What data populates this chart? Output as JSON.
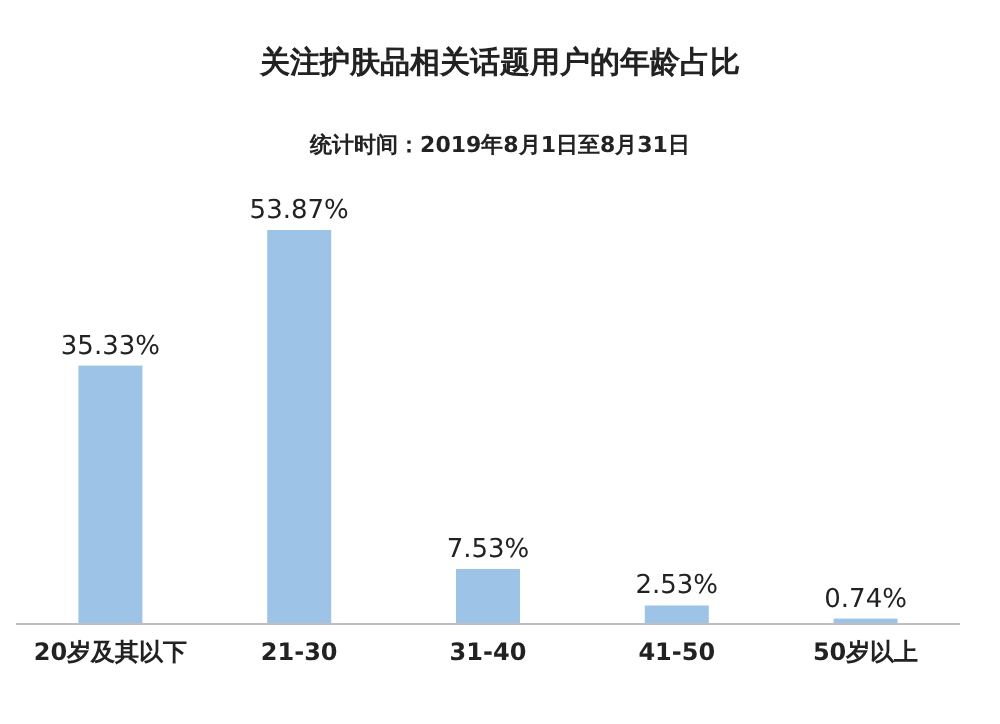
{
  "chart_data": {
    "type": "bar",
    "title": "关注护肤品相关话题用户的年龄占比",
    "subtitle": "统计时间：2019年8月1日至8月31日",
    "categories": [
      "20岁及其以下",
      "21-30",
      "31-40",
      "41-50",
      "50岁以上"
    ],
    "values": [
      35.33,
      53.87,
      7.53,
      2.53,
      0.74
    ],
    "value_labels": [
      "35.33%",
      "53.87%",
      "7.53%",
      "2.53%",
      "0.74%"
    ],
    "color": "#9dc3e6"
  }
}
